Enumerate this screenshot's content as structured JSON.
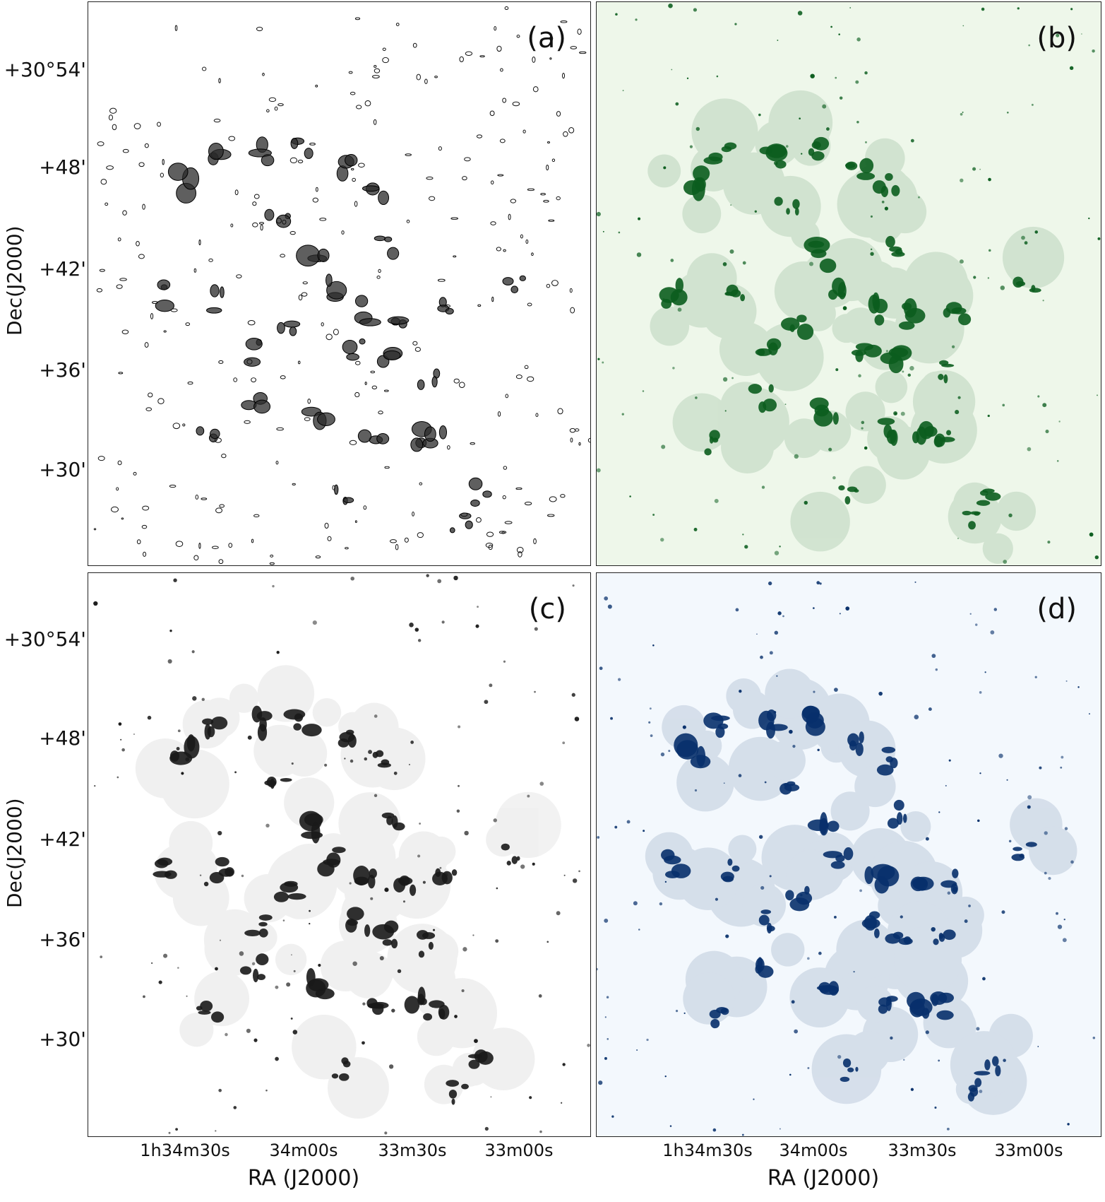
{
  "figure": {
    "panels": [
      {
        "id": "a",
        "label": "(a)",
        "style": "contours",
        "fill": "#2a2a2a",
        "bg": "#ffffff"
      },
      {
        "id": "b",
        "label": "(b)",
        "style": "green",
        "fill": "#0b5d1e",
        "bg": "#eef7ea"
      },
      {
        "id": "c",
        "label": "(c)",
        "style": "gray",
        "fill": "#1a1a1a",
        "bg": "#ffffff"
      },
      {
        "id": "d",
        "label": "(d)",
        "style": "blue",
        "fill": "#08306b",
        "bg": "#f3f8fd"
      }
    ],
    "y_axis": {
      "label": "Dec(J2000)",
      "ticks_top": [
        "+30°54'",
        "+48'",
        "+42'",
        "+36'",
        "+30'"
      ],
      "ticks_bottom": [
        "+30°54'",
        "+48'",
        "+42'",
        "+36'",
        "+30'"
      ]
    },
    "x_axis": {
      "label": "RA (J2000)",
      "ticks": [
        "1h34m30s",
        "34m00s",
        "33m30s",
        "33m00s"
      ]
    }
  }
}
